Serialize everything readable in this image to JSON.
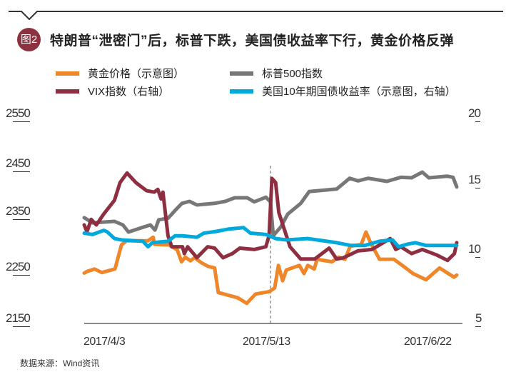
{
  "header": {
    "badge": "图2",
    "title": "特朗普“泄密门”后，标普下跌，美国债收益率下行，黄金价格反弹"
  },
  "source": "数据来源：Wind资讯",
  "colors": {
    "gold": "#f0862a",
    "sp500": "#777777",
    "vix": "#8e2f41",
    "yield": "#00a9dc",
    "badge": "#8e3040"
  },
  "chart_data": {
    "type": "line",
    "title": "特朗普“泄密门”后，标普下跌，美国债收益率下行，黄金价格反弹",
    "x_unit": "days since 2017/4/3",
    "x_ticks": [
      {
        "day": 0,
        "label": "2017/4/3"
      },
      {
        "day": 40,
        "label": "2017/5/13"
      },
      {
        "day": 80,
        "label": "2017/6/22"
      }
    ],
    "xlim": [
      0,
      80
    ],
    "left_axis": {
      "ylim": [
        2150,
        2550
      ],
      "ticks": [
        "2550",
        "2450",
        "2350",
        "2250",
        "2150"
      ]
    },
    "right_axis": {
      "ylim": [
        5,
        20
      ],
      "ticks": [
        "20",
        "15",
        "10",
        "5"
      ]
    },
    "annotation": {
      "type": "dashed-vline",
      "day": 40
    },
    "legend_position": "top",
    "series": [
      {
        "name": "黄金价格（示意图）",
        "axis": "left",
        "color": "#f0862a",
        "x": [
          0,
          0.6,
          2.2,
          3.8,
          6.6,
          8,
          9.1,
          13.7,
          14.8,
          15.1,
          18.2,
          20,
          20.9,
          21.7,
          22.8,
          23.7,
          25.2,
          26.6,
          28,
          28.8,
          32.9,
          34.9,
          36.8,
          39.8,
          40.9,
          41.7,
          42.6,
          43.4,
          46.2,
          47.2,
          48,
          49.4,
          50,
          53.2,
          54.6,
          56,
          57.1,
          59.5,
          60.5,
          61.5,
          63.4,
          66.5,
          68.6,
          70.6,
          73.4,
          76.3,
          79.4,
          80
        ],
        "y": [
          2240,
          2243,
          2248,
          2241,
          2248,
          2295,
          2303,
          2303,
          2310,
          2296,
          2295,
          2285,
          2262,
          2271,
          2264,
          2270,
          2260,
          2253,
          2250,
          2202,
          2192,
          2181,
          2199,
          2204,
          2211,
          2255,
          2225,
          2246,
          2255,
          2239,
          2255,
          2248,
          2267,
          2262,
          2271,
          2267,
          2292,
          2296,
          2320,
          2299,
          2267,
          2267,
          2253,
          2239,
          2227,
          2250,
          2232,
          2236
        ]
      },
      {
        "name": "标普500指数",
        "axis": "left",
        "color": "#777777",
        "x": [
          0,
          1.8,
          6.5,
          8.3,
          9.5,
          11.8,
          14.2,
          15.2,
          16,
          18,
          19.5,
          21,
          22.6,
          24.2,
          28,
          30.3,
          32.3,
          35,
          36.5,
          39,
          40,
          40.6,
          42.2,
          43.7,
          46.5,
          48.3,
          54.2,
          57,
          58.8,
          61,
          65,
          68,
          70.3,
          72.6,
          74,
          78,
          79.2,
          80
        ],
        "y": [
          2348,
          2338,
          2341,
          2334,
          2320,
          2327,
          2334,
          2324,
          2344,
          2347,
          2362,
          2376,
          2380,
          2373,
          2376,
          2380,
          2387,
          2387,
          2379,
          2388,
          2379,
          2313,
          2330,
          2355,
          2376,
          2399,
          2404,
          2425,
          2420,
          2425,
          2419,
          2427,
          2426,
          2437,
          2426,
          2429,
          2427,
          2408
        ]
      },
      {
        "name": "VIX指数（右轴）",
        "axis": "right",
        "color": "#8e2f41",
        "x": [
          0,
          0.6,
          1.5,
          2.6,
          4.2,
          6.5,
          7.7,
          9.2,
          11.1,
          13.4,
          15,
          15.8,
          16.5,
          16.9,
          18,
          18.8,
          21.1,
          21.5,
          22.2,
          24.2,
          26.5,
          28,
          29.8,
          31.8,
          33.4,
          36.5,
          39,
          39.7,
          40.3,
          41.1,
          41.8,
          44.2,
          46.5,
          49.5,
          52.6,
          54.2,
          55.7,
          58.8,
          61.8,
          65.7,
          66.9,
          68,
          70.3,
          72.6,
          75.7,
          78,
          79.5,
          80
        ],
        "y": [
          11.9,
          11.4,
          12.3,
          11.9,
          12.7,
          13.7,
          15.0,
          15.7,
          15.0,
          14.4,
          14.3,
          14.5,
          13.8,
          14.3,
          11.1,
          10.3,
          10.3,
          9.8,
          10.3,
          9.5,
          10.3,
          10.2,
          9.5,
          9.8,
          10.2,
          10.1,
          10.3,
          11.1,
          15.3,
          15.0,
          12.8,
          10.3,
          9.4,
          9.4,
          10.2,
          9.4,
          9.5,
          10.0,
          10.1,
          10.9,
          10.1,
          10.3,
          9.8,
          10.1,
          9.7,
          9.3,
          9.8,
          10.6
        ]
      },
      {
        "name": "美国10年期国债收益率（示意图，右轴）",
        "axis": "right",
        "color": "#00a9dc",
        "x": [
          0,
          1.8,
          4.2,
          4.9,
          6.5,
          8,
          12.6,
          13.7,
          14.6,
          18,
          19.5,
          21.1,
          24.2,
          25.7,
          28,
          31.1,
          34.2,
          35.7,
          39,
          41.1,
          43.4,
          48,
          54.2,
          57.2,
          60.3,
          63.4,
          66.2,
          67.5,
          69.5,
          71.1,
          73.4,
          75.7,
          80
        ],
        "y": [
          11.3,
          11.2,
          11.5,
          11.4,
          10.9,
          10.8,
          10.7,
          10.3,
          10.6,
          10.7,
          11.1,
          11.1,
          11.0,
          11.3,
          11.4,
          11.6,
          11.7,
          11.3,
          11.2,
          10.9,
          10.8,
          10.9,
          10.6,
          10.4,
          10.4,
          10.7,
          10.8,
          10.3,
          10.5,
          10.6,
          10.4,
          10.4,
          10.4
        ]
      }
    ]
  }
}
